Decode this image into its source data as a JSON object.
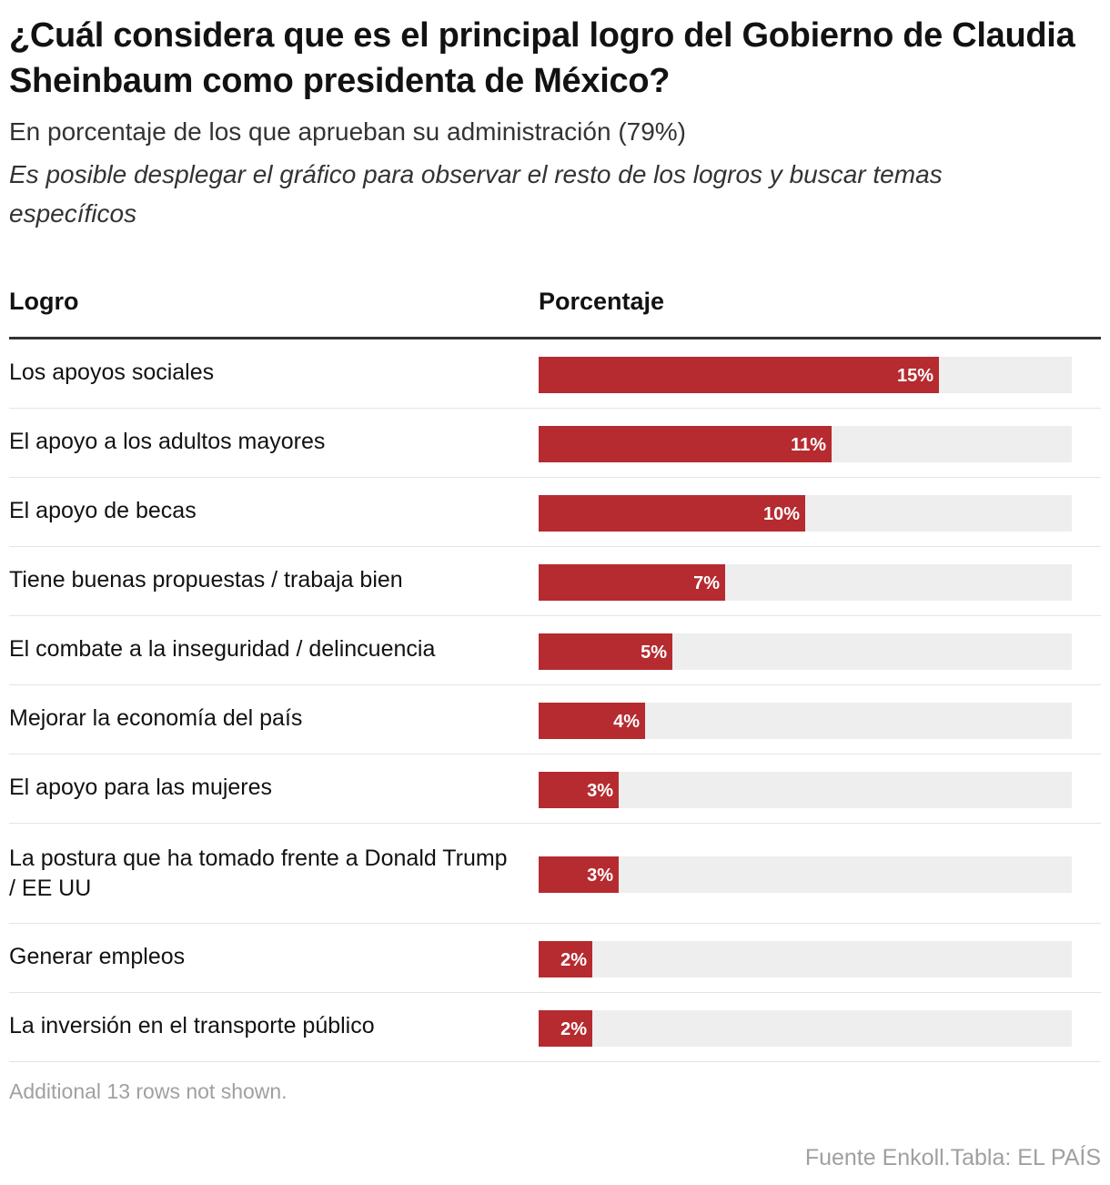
{
  "header": {
    "title": "¿Cuál considera que es el principal logro del Gobierno de Claudia Sheinbaum como presidenta de México?",
    "subtitle": "En porcentaje de los que aprueban su administración (79%)",
    "note": "Es posible desplegar el gráfico para observar el resto de los logros y buscar temas específicos"
  },
  "table": {
    "col_logro": "Logro",
    "col_porcentaje": "Porcentaje"
  },
  "chart_data": {
    "type": "bar",
    "orientation": "horizontal",
    "title": "¿Cuál considera que es el principal logro del Gobierno de Claudia Sheinbaum como presidenta de México?",
    "xlabel": "Porcentaje",
    "ylabel": "Logro",
    "xlim": [
      0,
      20
    ],
    "categories": [
      "Los apoyos sociales",
      "El apoyo a los adultos mayores",
      "El apoyo de becas",
      "Tiene buenas propuestas / trabaja bien",
      "El combate a la inseguridad / delincuencia",
      "Mejorar la economía del país",
      "El apoyo para las mujeres",
      "La postura que ha tomado frente a Donald Trump / EE UU",
      "Generar empleos",
      "La inversión en el transporte público"
    ],
    "values": [
      15,
      11,
      10,
      7,
      5,
      4,
      3,
      3,
      2,
      2
    ],
    "labels": [
      "15%",
      "11%",
      "10%",
      "7%",
      "5%",
      "4%",
      "3%",
      "3%",
      "2%",
      "2%"
    ],
    "bar_color": "#b52b30",
    "track_color": "#eeeeee"
  },
  "footer": {
    "more_rows": "Additional 13 rows not shown.",
    "source": "Fuente Enkoll.Tabla: EL PAÍS"
  }
}
